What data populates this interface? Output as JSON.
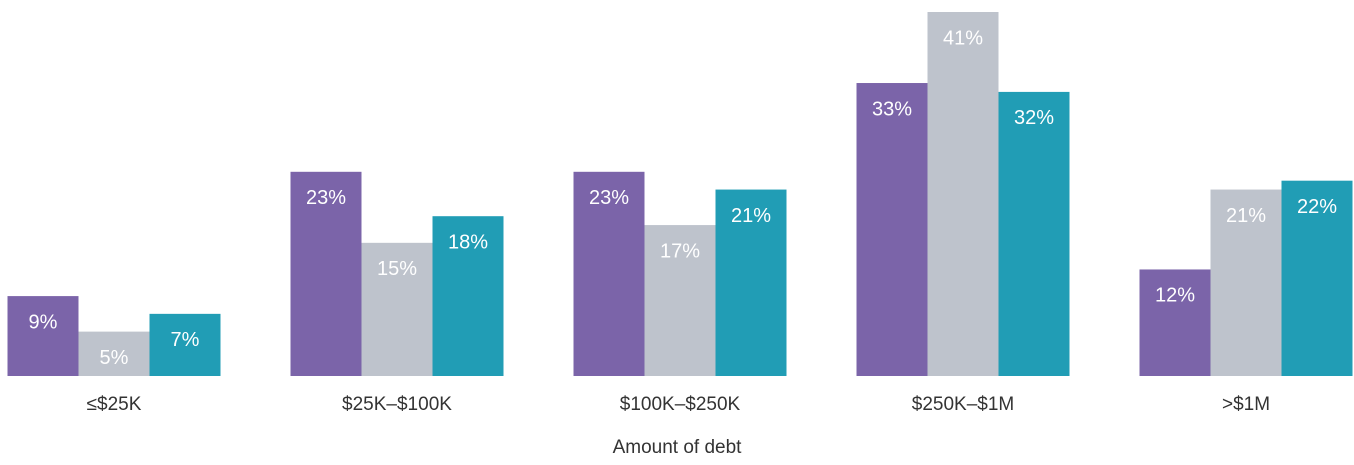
{
  "chart_data": {
    "type": "bar",
    "x_label": "Amount of debt",
    "categories": [
      "≤$25K",
      "$25K–$100K",
      "$100K–$250K",
      "$250K–$1M",
      ">$1M"
    ],
    "ylim": [
      0,
      41
    ],
    "series": [
      {
        "color": "#7b64a9",
        "values": [
          9,
          23,
          23,
          33,
          12
        ],
        "value_labels": [
          "9%",
          "23%",
          "23%",
          "33%",
          "12%"
        ]
      },
      {
        "color": "#bec3cc",
        "values": [
          5,
          15,
          17,
          41,
          21
        ],
        "value_labels": [
          "5%",
          "15%",
          "17%",
          "41%",
          "21%"
        ]
      },
      {
        "color": "#219db5",
        "values": [
          7,
          18,
          21,
          32,
          22
        ],
        "value_labels": [
          "7%",
          "18%",
          "21%",
          "32%",
          "22%"
        ]
      }
    ]
  }
}
